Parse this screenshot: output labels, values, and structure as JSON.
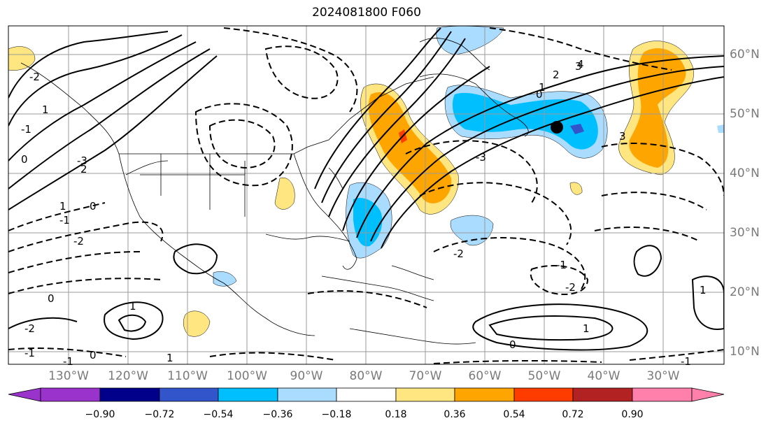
{
  "title": "2024081800 F060",
  "colors": {
    "land": "#000000",
    "grid": "#9a9a9a",
    "colorbar": [
      "#9933cc",
      "#00008b",
      "#3355cc",
      "#00bfff",
      "#aadcff",
      "#ffffff",
      "#ffe680",
      "#ffa500",
      "#ff3c00",
      "#b22222",
      "#ff80aa"
    ]
  },
  "longitude_labels": [
    "130°W",
    "120°W",
    "110°W",
    "100°W",
    "90°W",
    "80°W",
    "70°W",
    "60°W",
    "50°W",
    "40°W",
    "30°W"
  ],
  "latitude_labels": [
    "60°N",
    "50°N",
    "40°N",
    "30°N",
    "20°N",
    "10°N"
  ],
  "contour_labels": [
    "4",
    "3",
    "2",
    "1",
    "0",
    "-1",
    "-2",
    "-3",
    "1",
    "-1",
    "-2",
    "-3",
    "0",
    "1",
    "2",
    "3",
    "0",
    "-2",
    "-1",
    "1",
    "-1",
    "-2",
    "0",
    "1",
    "-1",
    "1",
    "0",
    "-1",
    "1",
    "-2",
    "0"
  ],
  "colorbar": {
    "tick_labels": [
      "−0.90",
      "−0.72",
      "−0.54",
      "−0.36",
      "−0.18",
      "0.18",
      "0.36",
      "0.54",
      "0.72",
      "0.90"
    ],
    "bounds": [
      -0.9,
      0.9
    ]
  },
  "marker": {
    "name": "storm-center-marker"
  }
}
